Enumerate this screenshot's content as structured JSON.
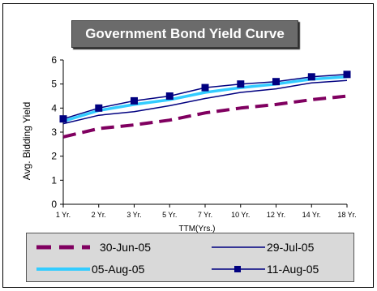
{
  "chart_data": {
    "type": "line",
    "title": "Government Bond Yield Curve",
    "xlabel": "TTM(Yrs.)",
    "ylabel": "Avg. Bidding Yield",
    "categories": [
      "1 Yr.",
      "2 Yr.",
      "3 Yr.",
      "5 Yr.",
      "7 Yr.",
      "10 Yr.",
      "12 Yr.",
      "14 Yr.",
      "18 Yr."
    ],
    "ylim": [
      0,
      6
    ],
    "yticks": [
      "0",
      "1",
      "2",
      "3",
      "4",
      "5",
      "6"
    ],
    "grid": false,
    "legend_position": "bottom",
    "series": [
      {
        "name": "30-Jun-05",
        "values": [
          2.8,
          3.15,
          3.3,
          3.5,
          3.8,
          4.0,
          4.15,
          4.35,
          4.5
        ],
        "color": "#800060",
        "style": "dashed",
        "marker": "none"
      },
      {
        "name": "29-Jul-05",
        "values": [
          3.35,
          3.7,
          3.85,
          4.1,
          4.4,
          4.65,
          4.8,
          5.05,
          5.15
        ],
        "color": "#000080",
        "style": "solid",
        "marker": "none"
      },
      {
        "name": "05-Aug-05",
        "values": [
          3.45,
          3.9,
          4.15,
          4.35,
          4.65,
          4.85,
          5.0,
          5.2,
          5.3
        ],
        "color": "#33ccff",
        "style": "solid",
        "marker": "none"
      },
      {
        "name": "11-Aug-05",
        "values": [
          3.55,
          4.0,
          4.3,
          4.5,
          4.85,
          5.0,
          5.1,
          5.3,
          5.4
        ],
        "color": "#000080",
        "style": "solid",
        "marker": "square"
      }
    ]
  }
}
